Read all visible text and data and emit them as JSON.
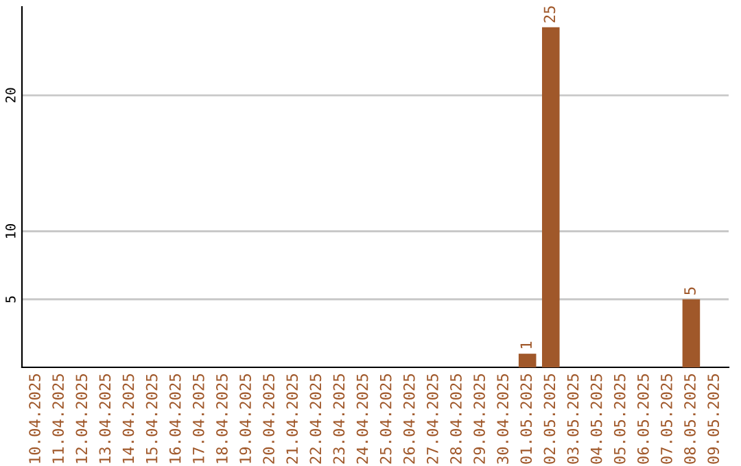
{
  "chart_data": {
    "type": "bar",
    "categories": [
      "10.04.2025",
      "11.04.2025",
      "12.04.2025",
      "13.04.2025",
      "14.04.2025",
      "15.04.2025",
      "16.04.2025",
      "17.04.2025",
      "18.04.2025",
      "19.04.2025",
      "20.04.2025",
      "21.04.2025",
      "22.04.2025",
      "23.04.2025",
      "24.04.2025",
      "25.04.2025",
      "26.04.2025",
      "27.04.2025",
      "28.04.2025",
      "29.04.2025",
      "30.04.2025",
      "01.05.2025",
      "02.05.2025",
      "03.05.2025",
      "04.05.2025",
      "05.05.2025",
      "06.05.2025",
      "07.05.2025",
      "08.05.2025",
      "09.05.2025"
    ],
    "values": [
      0,
      0,
      0,
      0,
      0,
      0,
      0,
      0,
      0,
      0,
      0,
      0,
      0,
      0,
      0,
      0,
      0,
      0,
      0,
      0,
      0,
      1,
      25,
      0,
      0,
      0,
      0,
      0,
      5,
      0
    ],
    "value_labels": [
      null,
      null,
      null,
      null,
      null,
      null,
      null,
      null,
      null,
      null,
      null,
      null,
      null,
      null,
      null,
      null,
      null,
      null,
      null,
      null,
      null,
      "1",
      "25",
      null,
      null,
      null,
      null,
      null,
      "5",
      null
    ],
    "color": "#a0582a",
    "ylim": [
      0,
      26.5
    ],
    "yticks": [
      5,
      10,
      20
    ],
    "grid": "y",
    "legend": false
  }
}
